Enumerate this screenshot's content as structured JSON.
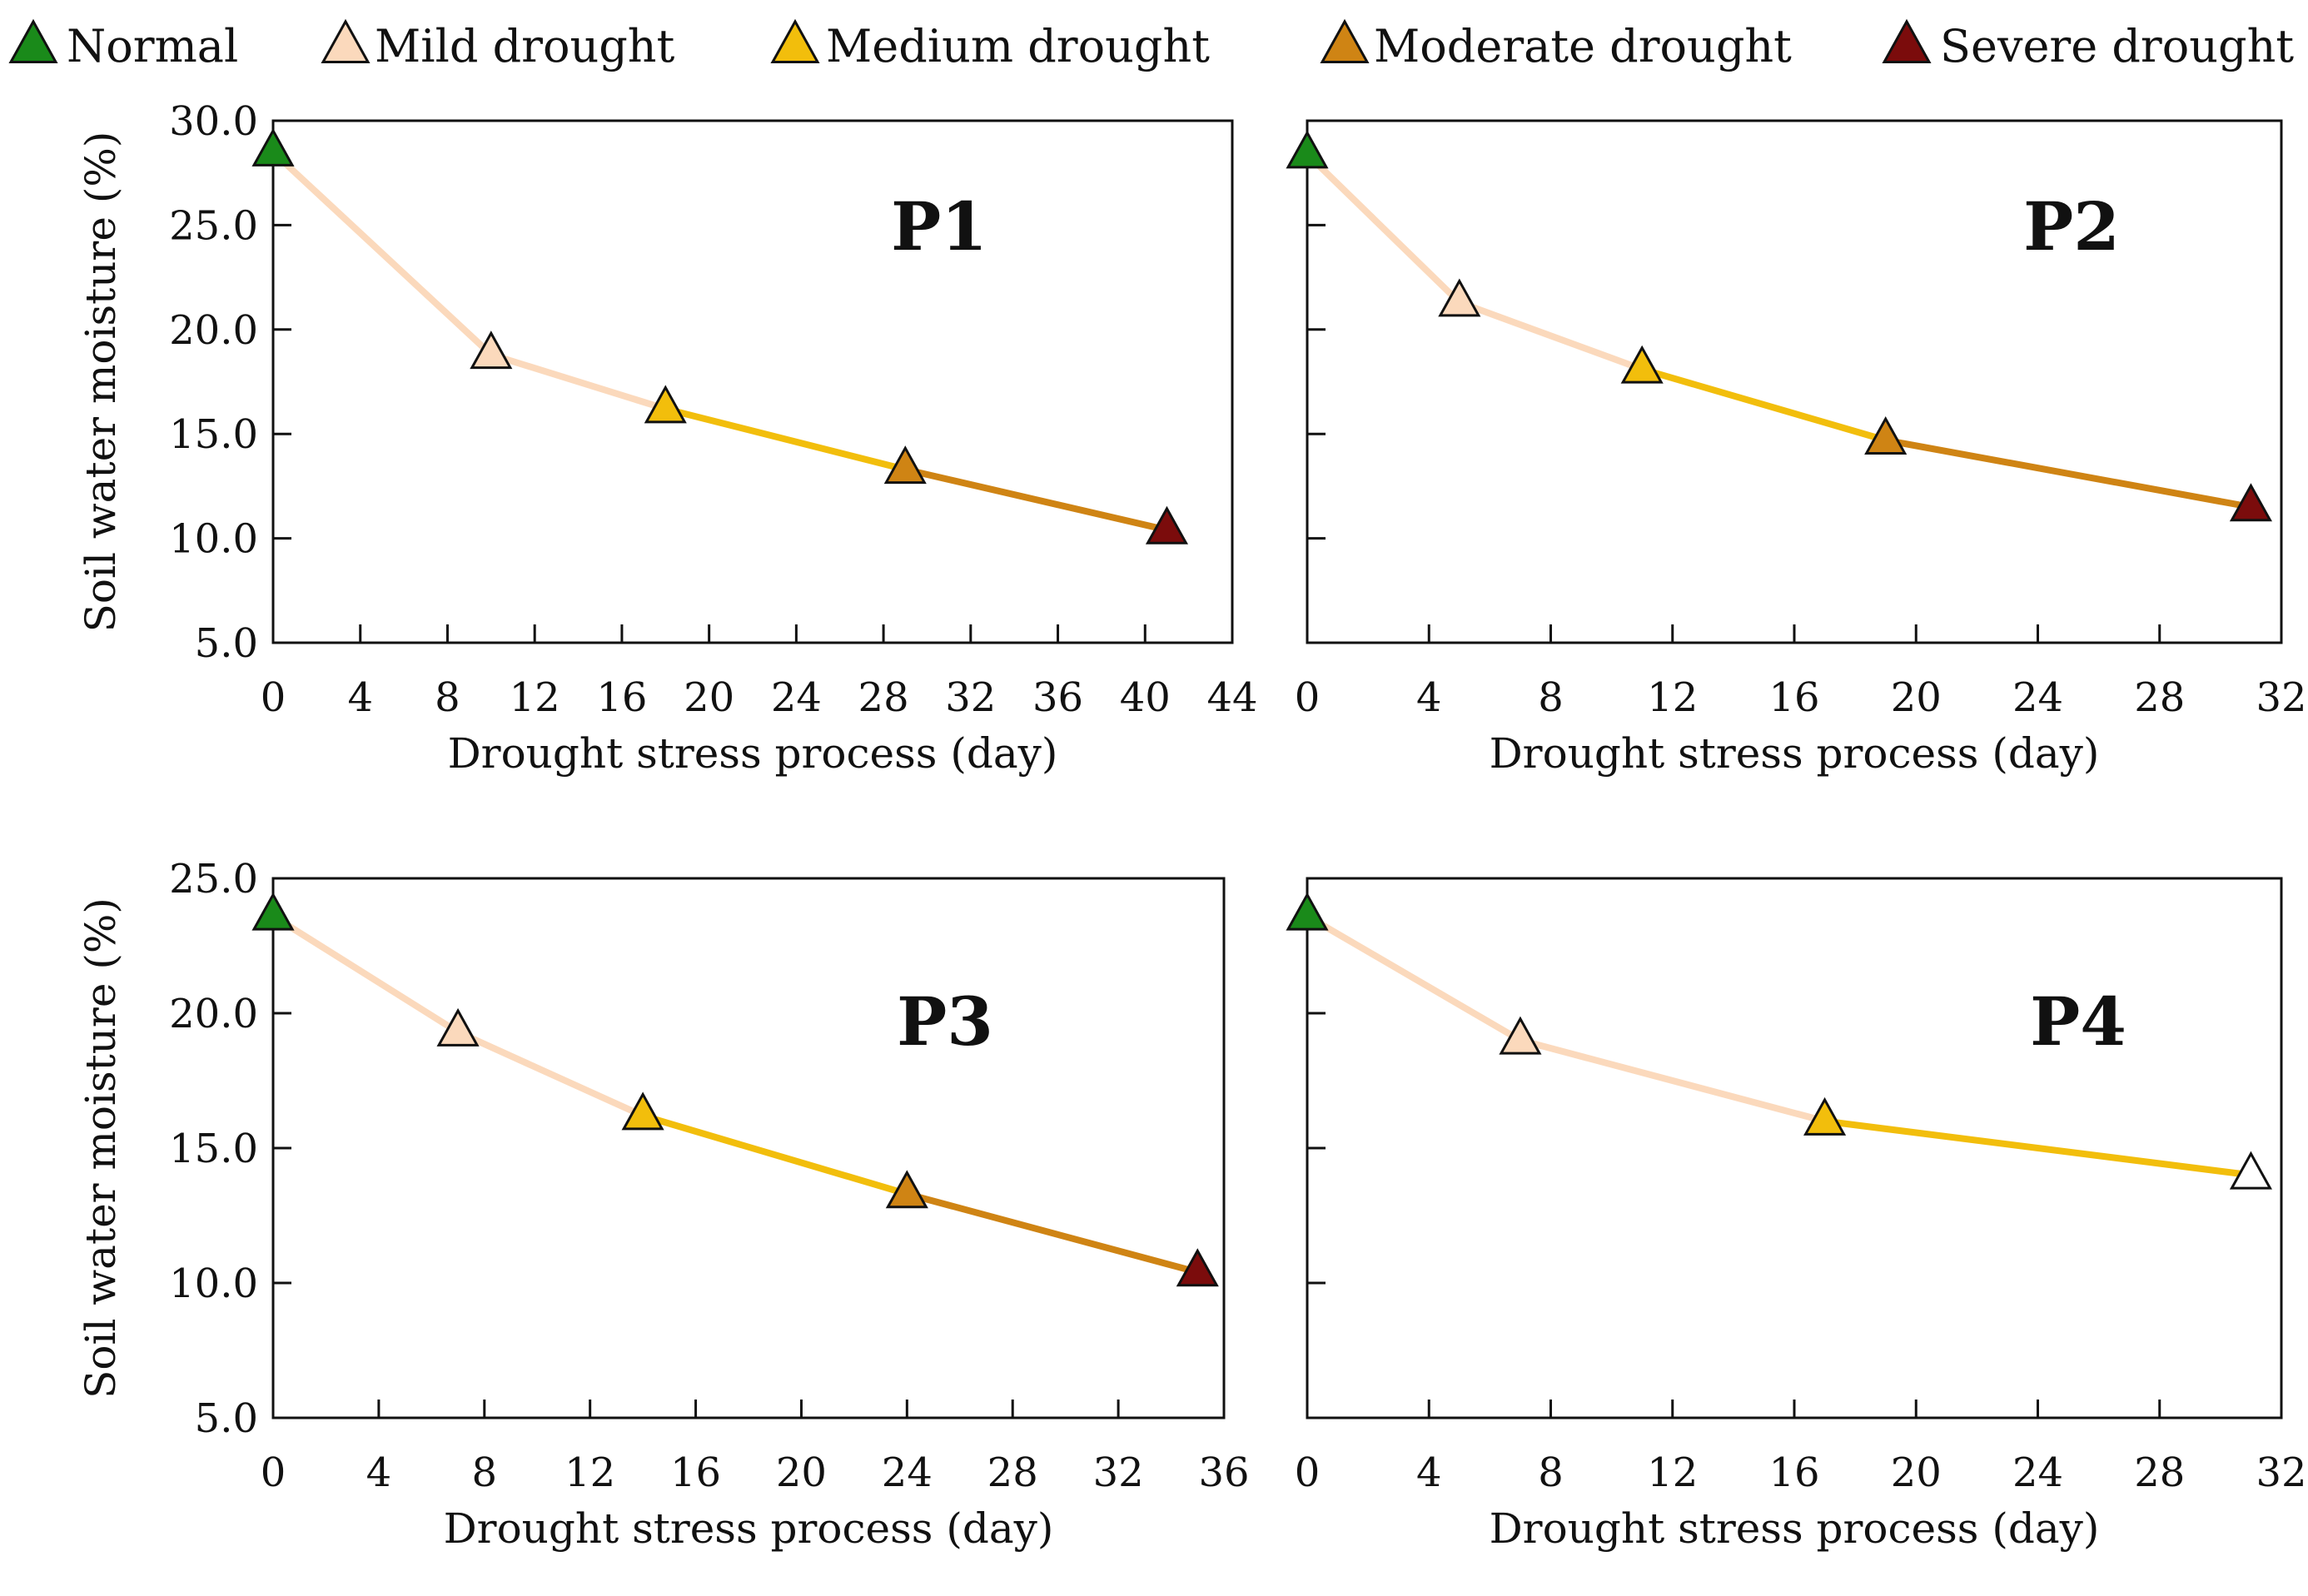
{
  "legend": [
    {
      "label": "Normal",
      "color": "#1a8a1a"
    },
    {
      "label": "Mild drought",
      "color": "#fbd9bc"
    },
    {
      "label": "Medium drought",
      "color": "#f2be0c"
    },
    {
      "label": "Moderate drought",
      "color": "#cf8414"
    },
    {
      "label": "Severe drought",
      "color": "#7b0c0c"
    }
  ],
  "chart_data": [
    {
      "type": "line",
      "title": "P1",
      "xlabel": "Drought stress process (day)",
      "ylabel": "Soil water moisture (%)",
      "xlim": [
        0,
        44
      ],
      "ylim": [
        5.0,
        30.0
      ],
      "xticks": [
        "0",
        "4",
        "8",
        "12",
        "16",
        "20",
        "24",
        "28",
        "32",
        "36",
        "40",
        "44"
      ],
      "yticks": [
        "5.0",
        "10.0",
        "15.0",
        "20.0",
        "25.0",
        "30.0"
      ],
      "x": [
        0,
        10,
        18,
        29,
        41
      ],
      "y": [
        28.5,
        18.8,
        16.2,
        13.3,
        10.4
      ],
      "stages": [
        "Normal",
        "Mild drought",
        "Medium drought",
        "Moderate drought",
        "Severe drought"
      ]
    },
    {
      "type": "line",
      "title": "P2",
      "xlabel": "Drought stress process (day)",
      "ylabel": "",
      "xlim": [
        0,
        32
      ],
      "ylim": [
        5.0,
        30.0
      ],
      "xticks": [
        "0",
        "4",
        "8",
        "12",
        "16",
        "20",
        "24",
        "28",
        "32"
      ],
      "yticks": [],
      "x": [
        0,
        5,
        11,
        19,
        31
      ],
      "y": [
        28.4,
        21.3,
        18.1,
        14.7,
        11.5
      ],
      "stages": [
        "Normal",
        "Mild drought",
        "Medium drought",
        "Moderate drought",
        "Severe drought"
      ]
    },
    {
      "type": "line",
      "title": "P3",
      "xlabel": "Drought stress process (day)",
      "ylabel": "Soil water moisture (%)",
      "xlim": [
        0,
        36
      ],
      "ylim": [
        5.0,
        25.0
      ],
      "xticks": [
        "0",
        "4",
        "8",
        "12",
        "16",
        "20",
        "24",
        "28",
        "32",
        "36"
      ],
      "yticks": [
        "5.0",
        "10.0",
        "15.0",
        "20.0",
        "25.0"
      ],
      "x": [
        0,
        7,
        14,
        24,
        35
      ],
      "y": [
        23.6,
        19.3,
        16.2,
        13.3,
        10.4
      ],
      "stages": [
        "Normal",
        "Mild drought",
        "Medium drought",
        "Moderate drought",
        "Severe drought"
      ]
    },
    {
      "type": "line",
      "title": "P4",
      "xlabel": "Drought stress process (day)",
      "ylabel": "",
      "xlim": [
        0,
        32
      ],
      "ylim": [
        5.0,
        25.0
      ],
      "xticks": [
        "0",
        "4",
        "8",
        "12",
        "16",
        "20",
        "24",
        "28",
        "32"
      ],
      "yticks": [],
      "x": [
        0,
        7,
        17,
        31
      ],
      "y": [
        23.6,
        19.0,
        16.0,
        14.0
      ],
      "stages": [
        "Normal",
        "Mild drought",
        "Medium drought",
        "None"
      ]
    }
  ]
}
